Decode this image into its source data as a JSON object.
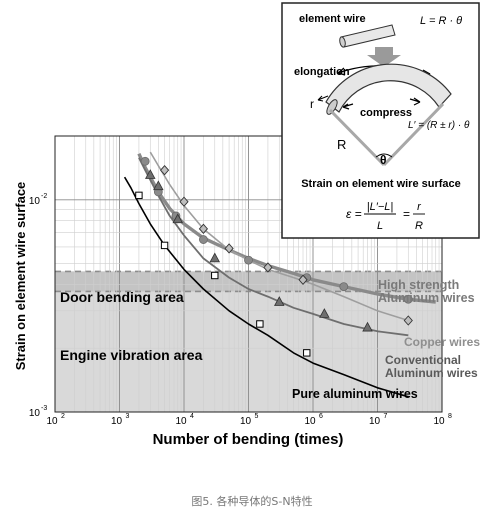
{
  "caption": "图5. 各种导体的S-N特性",
  "chart_data": {
    "type": "line",
    "xscale": "log",
    "yscale": "log",
    "xlim": [
      100,
      100000000
    ],
    "ylim": [
      0.001,
      0.02
    ],
    "xlabel": "Number of bending (times)",
    "ylabel": "Strain on element wire surface",
    "xticks": [
      {
        "value": 100,
        "base": "10",
        "exp": "2"
      },
      {
        "value": 1000,
        "base": "10",
        "exp": "3"
      },
      {
        "value": 10000,
        "base": "10",
        "exp": "4"
      },
      {
        "value": 100000,
        "base": "10",
        "exp": "5"
      },
      {
        "value": 1000000,
        "base": "10",
        "exp": "6"
      },
      {
        "value": 10000000,
        "base": "10",
        "exp": "7"
      },
      {
        "value": 100000000,
        "base": "10",
        "exp": "8"
      }
    ],
    "yticks": [
      {
        "value": 0.01,
        "base": "10",
        "exp": "-2"
      },
      {
        "value": 0.001,
        "base": "10",
        "exp": "-3"
      }
    ],
    "regions": [
      {
        "label": "Door bending area",
        "y_range": [
          0.0037,
          0.0046
        ],
        "color": "#c4c4c4",
        "border": "dashed"
      },
      {
        "label": "Engine vibration area",
        "y_range": [
          0.001,
          0.0046
        ],
        "color": "#d9d9d9"
      }
    ],
    "series": [
      {
        "name": "High strength Aluminum wires",
        "label_lines": [
          "High  strength",
          "Aluminum wires"
        ],
        "marker": "circle",
        "color": "#8a8a8a",
        "label_color": "#7a7a7a",
        "curve": {
          "x": [
            2000,
            2500,
            3000,
            4000,
            6000,
            10000,
            20000,
            50000,
            100000,
            200000,
            500000,
            1000000,
            3000000,
            10000000,
            30000000,
            80000000
          ],
          "y": [
            0.0165,
            0.0142,
            0.0128,
            0.0109,
            0.0091,
            0.0077,
            0.0066,
            0.0058,
            0.0053,
            0.0049,
            0.0045,
            0.0042,
            0.0039,
            0.0036,
            0.0034,
            0.0033
          ]
        },
        "points": {
          "x": [
            2500,
            4000,
            7500,
            20000,
            100000,
            800000,
            3000000,
            30000000
          ],
          "y": [
            0.0152,
            0.0109,
            0.0084,
            0.0065,
            0.0052,
            0.0043,
            0.0039,
            0.0034
          ]
        }
      },
      {
        "name": "Copper wires",
        "label_lines": [
          "Copper wires"
        ],
        "marker": "diamond",
        "color": "#9e9e9e",
        "label_color": "#8f8f8f",
        "curve": {
          "x": [
            3000,
            4000,
            6000,
            10000,
            20000,
            50000,
            100000,
            200000,
            500000,
            1000000,
            3000000,
            10000000,
            30000000
          ],
          "y": [
            0.0168,
            0.0145,
            0.0118,
            0.0094,
            0.0073,
            0.0058,
            0.0052,
            0.0047,
            0.0043,
            0.004,
            0.0035,
            0.003,
            0.0027
          ]
        },
        "points": {
          "x": [
            5000,
            10000,
            20000,
            50000,
            200000,
            700000,
            30000000
          ],
          "y": [
            0.0138,
            0.0098,
            0.0073,
            0.0059,
            0.0048,
            0.0042,
            0.0027
          ]
        }
      },
      {
        "name": "Conventional Aluminum wires",
        "label_lines": [
          "Conventional",
          "Aluminum wires"
        ],
        "marker": "triangle",
        "color": "#6e6e6e",
        "label_color": "#5a5a5a",
        "curve": {
          "x": [
            2000,
            2500,
            3000,
            4000,
            6000,
            10000,
            20000,
            50000,
            100000,
            200000,
            500000,
            1000000,
            3000000,
            10000000,
            30000000
          ],
          "y": [
            0.0158,
            0.0138,
            0.0124,
            0.0105,
            0.0084,
            0.0068,
            0.0053,
            0.0043,
            0.0038,
            0.0035,
            0.0031,
            0.0029,
            0.0026,
            0.0024,
            0.0023
          ]
        },
        "points": {
          "x": [
            3000,
            4000,
            8000,
            30000,
            300000,
            1500000,
            7000000
          ],
          "y": [
            0.0131,
            0.0116,
            0.0081,
            0.0053,
            0.0033,
            0.0029,
            0.0025
          ]
        }
      },
      {
        "name": "Pure aluminum wires",
        "label_lines": [
          "Pure aluminum wires"
        ],
        "marker": "square",
        "color": "#000000",
        "label_color": "#000000",
        "curve": {
          "x": [
            1200,
            1500,
            2000,
            3000,
            5000,
            10000,
            20000,
            50000,
            100000,
            200000,
            500000,
            1000000,
            3000000,
            10000000,
            30000000
          ],
          "y": [
            0.0128,
            0.0114,
            0.0096,
            0.0077,
            0.0061,
            0.0047,
            0.0038,
            0.003,
            0.0026,
            0.0023,
            0.0019,
            0.0017,
            0.0015,
            0.0013,
            0.00118
          ]
        },
        "points": {
          "x": [
            2000,
            5000,
            30000,
            150000,
            800000
          ],
          "y": [
            0.0105,
            0.0061,
            0.0044,
            0.0026,
            0.0019
          ]
        }
      }
    ]
  },
  "inset": {
    "element_wire_label": "element wire",
    "formula_top": "L = R · θ",
    "elongation_label": "elongation",
    "compress_label": "compress",
    "r_label": "r",
    "R_label": "R",
    "theta_label": "θ",
    "formula_mid": "L′ = (R ± r) · θ",
    "title": "Strain on element wire surface",
    "strain_eq": {
      "lhs": "ε =",
      "num1": "|L′−L|",
      "den1": "L",
      "num2": "r",
      "den2": "R"
    }
  }
}
